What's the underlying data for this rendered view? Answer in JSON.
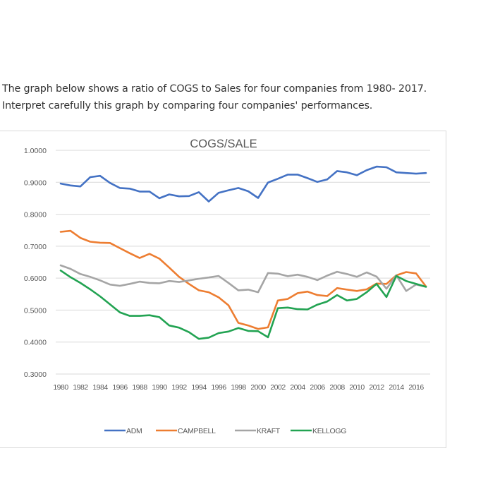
{
  "question": {
    "line1": "The graph below shows a ratio of COGS to Sales for four companies from 1980- 2017.",
    "line2": "Interpret carefully this graph by comparing four companies' performances."
  },
  "chart_data": {
    "type": "line",
    "title": "COGS/SALE",
    "xlabel": "",
    "ylabel": "",
    "ylim": [
      0.3,
      1.0
    ],
    "yticks": [
      "1.0000",
      "0.9000",
      "0.8000",
      "0.7000",
      "0.6000",
      "0.5000",
      "0.4000",
      "0.3000"
    ],
    "ytick_values": [
      1.0,
      0.9,
      0.8,
      0.7,
      0.6,
      0.5,
      0.4,
      0.3
    ],
    "grid": true,
    "legend_position": "bottom",
    "x": [
      1980,
      1981,
      1982,
      1983,
      1984,
      1985,
      1986,
      1987,
      1988,
      1989,
      1990,
      1991,
      1992,
      1993,
      1994,
      1995,
      1996,
      1997,
      1998,
      1999,
      2000,
      2001,
      2002,
      2003,
      2004,
      2005,
      2006,
      2007,
      2008,
      2009,
      2010,
      2011,
      2012,
      2013,
      2014,
      2015,
      2016,
      2017
    ],
    "xtick_labels": [
      "1980",
      "1982",
      "1984",
      "1986",
      "1988",
      "1990",
      "1992",
      "1994",
      "1996",
      "1998",
      "2000",
      "2002",
      "2004",
      "2006",
      "2008",
      "2010",
      "2012",
      "2014",
      "2016"
    ],
    "series": [
      {
        "name": "ADM",
        "color": "#4472c4",
        "values": [
          0.896,
          0.89,
          0.887,
          0.916,
          0.92,
          0.898,
          0.882,
          0.88,
          0.871,
          0.871,
          0.85,
          0.862,
          0.856,
          0.857,
          0.869,
          0.84,
          0.867,
          0.875,
          0.882,
          0.872,
          0.851,
          0.899,
          0.911,
          0.924,
          0.924,
          0.913,
          0.901,
          0.909,
          0.935,
          0.931,
          0.922,
          0.938,
          0.949,
          0.947,
          0.931,
          0.929,
          0.927,
          0.929
        ]
      },
      {
        "name": "CAMPBELL",
        "color": "#ed7d31",
        "values": [
          0.745,
          0.748,
          0.726,
          0.714,
          0.711,
          0.71,
          0.694,
          0.678,
          0.663,
          0.676,
          0.661,
          0.633,
          0.604,
          0.582,
          0.562,
          0.556,
          0.54,
          0.515,
          0.46,
          0.452,
          0.441,
          0.446,
          0.53,
          0.535,
          0.553,
          0.558,
          0.547,
          0.544,
          0.569,
          0.564,
          0.56,
          0.565,
          0.583,
          0.582,
          0.609,
          0.619,
          0.615,
          0.574
        ]
      },
      {
        "name": "KRAFT",
        "color": "#a5a5a5",
        "values": [
          0.64,
          0.629,
          0.613,
          0.604,
          0.593,
          0.58,
          0.576,
          0.582,
          0.589,
          0.585,
          0.584,
          0.591,
          0.588,
          0.593,
          0.598,
          0.602,
          0.607,
          0.585,
          0.562,
          0.564,
          0.556,
          0.616,
          0.614,
          0.606,
          0.611,
          0.604,
          0.594,
          0.608,
          0.62,
          0.613,
          0.604,
          0.618,
          0.605,
          0.567,
          0.609,
          0.56,
          0.58,
          0.573
        ]
      },
      {
        "name": "KELLOGG",
        "color": "#22a352",
        "values": [
          0.624,
          0.603,
          0.585,
          0.565,
          0.543,
          0.518,
          0.493,
          0.482,
          0.482,
          0.484,
          0.478,
          0.452,
          0.445,
          0.431,
          0.41,
          0.414,
          0.428,
          0.433,
          0.444,
          0.435,
          0.434,
          0.415,
          0.506,
          0.508,
          0.503,
          0.502,
          0.517,
          0.527,
          0.547,
          0.53,
          0.535,
          0.556,
          0.582,
          0.541,
          0.607,
          0.591,
          0.582,
          0.573
        ]
      }
    ]
  }
}
